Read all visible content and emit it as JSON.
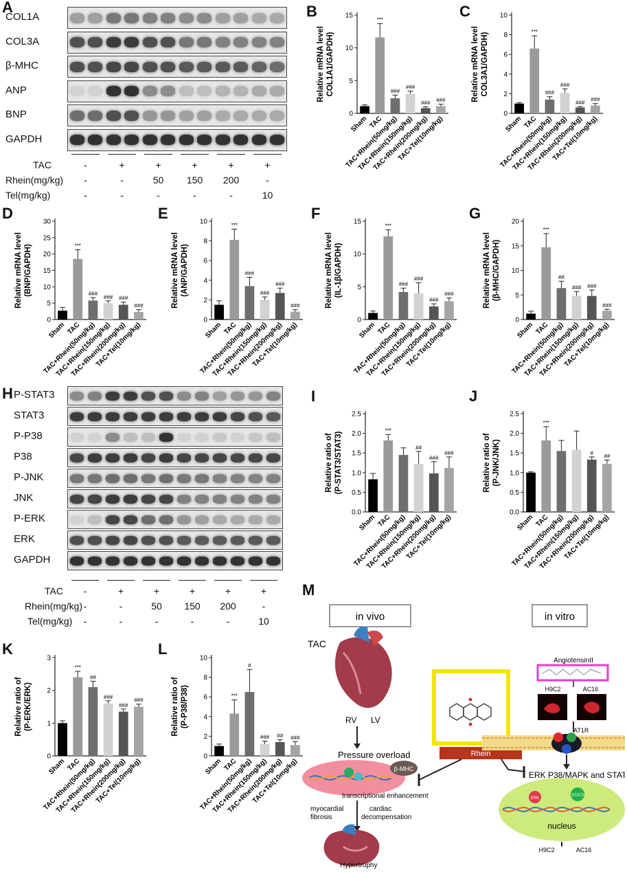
{
  "panels": {
    "A": "A",
    "B": "B",
    "C": "C",
    "D": "D",
    "E": "E",
    "F": "F",
    "G": "G",
    "H": "H",
    "I": "I",
    "J": "J",
    "K": "K",
    "L": "L",
    "M": "M"
  },
  "blot_A": {
    "rows": [
      "COL1A",
      "COL3A",
      "β-MHC",
      "ANP",
      "BNP",
      "GAPDH"
    ],
    "row_intensities": [
      [
        0.35,
        0.35,
        0.55,
        0.55,
        0.5,
        0.5,
        0.45,
        0.45,
        0.35,
        0.35,
        0.3,
        0.3
      ],
      [
        0.75,
        0.75,
        0.85,
        0.85,
        0.75,
        0.75,
        0.55,
        0.55,
        0.5,
        0.5,
        0.5,
        0.5
      ],
      [
        0.75,
        0.75,
        0.8,
        0.8,
        0.75,
        0.75,
        0.7,
        0.7,
        0.7,
        0.7,
        0.65,
        0.6
      ],
      [
        0.1,
        0.1,
        0.9,
        0.9,
        0.45,
        0.45,
        0.2,
        0.2,
        0.25,
        0.25,
        0.3,
        0.3
      ],
      [
        0.6,
        0.6,
        0.75,
        0.75,
        0.4,
        0.4,
        0.35,
        0.35,
        0.3,
        0.3,
        0.3,
        0.3
      ],
      [
        0.9,
        0.9,
        0.9,
        0.9,
        0.9,
        0.9,
        0.9,
        0.9,
        0.9,
        0.9,
        0.9,
        0.9
      ]
    ],
    "conditions": [
      {
        "label": "TAC",
        "values": [
          "-",
          "+",
          "+",
          "+",
          "+",
          "+"
        ]
      },
      {
        "label": "Rhein(mg/kg)",
        "values": [
          "-",
          "-",
          "50",
          "150",
          "200",
          "-"
        ]
      },
      {
        "label": "Tel(mg/kg)",
        "values": [
          "-",
          "-",
          "-",
          "-",
          "-",
          "10"
        ]
      }
    ]
  },
  "blot_H": {
    "rows": [
      "P-STAT3",
      "STAT3",
      "P-P38",
      "P38",
      "P-JNK",
      "JNK",
      "P-ERK",
      "ERK",
      "GAPDH"
    ],
    "row_intensities": [
      [
        0.45,
        0.5,
        0.85,
        0.85,
        0.75,
        0.75,
        0.45,
        0.5,
        0.35,
        0.4,
        0.4,
        0.5
      ],
      [
        0.85,
        0.85,
        0.85,
        0.85,
        0.85,
        0.85,
        0.85,
        0.85,
        0.85,
        0.8,
        0.75,
        0.7
      ],
      [
        0.1,
        0.1,
        0.45,
        0.2,
        0.2,
        0.9,
        0.1,
        0.1,
        0.15,
        0.1,
        0.15,
        0.2
      ],
      [
        0.8,
        0.85,
        0.85,
        0.85,
        0.8,
        0.85,
        0.8,
        0.8,
        0.8,
        0.8,
        0.8,
        0.8
      ],
      [
        0.55,
        0.55,
        0.6,
        0.6,
        0.55,
        0.6,
        0.55,
        0.55,
        0.5,
        0.5,
        0.5,
        0.5
      ],
      [
        0.8,
        0.8,
        0.85,
        0.85,
        0.8,
        0.8,
        0.5,
        0.5,
        0.5,
        0.5,
        0.5,
        0.5
      ],
      [
        0.1,
        0.2,
        0.8,
        0.8,
        0.6,
        0.6,
        0.4,
        0.35,
        0.3,
        0.3,
        0.3,
        0.3
      ],
      [
        0.75,
        0.75,
        0.8,
        0.8,
        0.75,
        0.75,
        0.7,
        0.7,
        0.7,
        0.7,
        0.7,
        0.7
      ],
      [
        0.9,
        0.9,
        0.9,
        0.9,
        0.9,
        0.9,
        0.9,
        0.9,
        0.9,
        0.9,
        0.9,
        0.9
      ]
    ],
    "conditions": [
      {
        "label": "TAC",
        "values": [
          "-",
          "+",
          "+",
          "+",
          "+",
          "+"
        ]
      },
      {
        "label": "Rhein(mg/kg)",
        "values": [
          "-",
          "-",
          "50",
          "150",
          "200",
          "-"
        ]
      },
      {
        "label": "Tel(mg/kg)",
        "values": [
          "-",
          "-",
          "-",
          "-",
          "-",
          "10"
        ]
      }
    ]
  },
  "chart_data": [
    {
      "id": "B",
      "type": "bar",
      "ylabel": "Relative mRNA level\nCOL1A1/GAPDH)",
      "categories": [
        "Sham",
        "TAC",
        "TAC+Rhein(50mg/kg)",
        "TAC+Rhein(150mg/kg)",
        "TAC+Rhein(200mg/kg)",
        "TAC+Tel(10mg/kg)"
      ],
      "values": [
        1.1,
        11.6,
        2.3,
        3.0,
        0.8,
        1.1
      ],
      "errors": [
        0.2,
        2.1,
        0.5,
        0.4,
        0.2,
        0.3
      ],
      "annotations": [
        "",
        "***",
        "###",
        "###",
        "###",
        "###"
      ],
      "ylim": [
        0,
        15
      ],
      "yticks": [
        0,
        5,
        10,
        15
      ]
    },
    {
      "id": "C",
      "type": "bar",
      "ylabel": "Relative mRNA level\nCOL3A1/GAPDH)",
      "categories": [
        "Sham",
        "TAC",
        "TAC+Rhein(50mg/kg)",
        "TAC+Rhein(150mg/kg)",
        "TAC+Rhein(200mg/kg)",
        "TAC+Tel(10mg/kg)"
      ],
      "values": [
        1.0,
        6.6,
        1.4,
        2.1,
        0.6,
        0.8
      ],
      "errors": [
        0.1,
        1.3,
        0.3,
        0.4,
        0.1,
        0.2
      ],
      "annotations": [
        "",
        "***",
        "###",
        "###",
        "###",
        "###"
      ],
      "ylim": [
        0,
        10
      ],
      "yticks": [
        0,
        2,
        4,
        6,
        8,
        10
      ]
    },
    {
      "id": "D",
      "type": "bar",
      "ylabel": "Relative mRNA level\n(BNP/GAPDH)",
      "categories": [
        "Sham",
        "TAC",
        "TAC+Rhein(50mg/kg)",
        "TAC+Rhein(150mg/kg)",
        "TAC+Rhein(200mg/kg)",
        "TAC+Tel(10mg/kg)"
      ],
      "values": [
        2.7,
        18.5,
        5.8,
        5.0,
        4.5,
        2.3
      ],
      "errors": [
        1.0,
        2.8,
        0.9,
        0.7,
        0.8,
        0.7
      ],
      "annotations": [
        "",
        "***",
        "###",
        "###",
        "###",
        "###"
      ],
      "ylim": [
        0,
        30
      ],
      "yticks": [
        0,
        5,
        10,
        15,
        20,
        25,
        30
      ]
    },
    {
      "id": "E",
      "type": "bar",
      "ylabel": "Relative mRNA level\n(ANP/GAPDH)",
      "categories": [
        "Sham",
        "TAC",
        "TAC+Rhein(50mg/kg)",
        "TAC+Rhein(150mg/kg)",
        "TAC+Rhein(200mg/kg)",
        "TAC+Tel(10mg/kg)"
      ],
      "values": [
        1.5,
        8.1,
        3.4,
        2.0,
        2.7,
        0.8
      ],
      "errors": [
        0.4,
        1.1,
        0.9,
        0.3,
        0.5,
        0.2
      ],
      "annotations": [
        "",
        "***",
        "###",
        "###",
        "###",
        "###"
      ],
      "ylim": [
        0,
        10
      ],
      "yticks": [
        0,
        2,
        4,
        6,
        8,
        10
      ]
    },
    {
      "id": "F",
      "type": "bar",
      "ylabel": "Relative mRNA level\n(IL-1β/GAPDH)",
      "categories": [
        "Sham",
        "TAC",
        "TAC+Rhein(50mg/kg)",
        "TAC+Rhein(150mg/kg)",
        "TAC+Rhein(200mg/kg)",
        "TAC+Tel(10mg/kg)"
      ],
      "values": [
        1.0,
        12.7,
        4.2,
        4.0,
        2.0,
        2.8
      ],
      "errors": [
        0.3,
        1.0,
        0.6,
        1.6,
        0.4,
        0.5
      ],
      "annotations": [
        "",
        "***",
        "###",
        "###",
        "###",
        "###"
      ],
      "ylim": [
        0,
        15
      ],
      "yticks": [
        0,
        5,
        10,
        15
      ]
    },
    {
      "id": "G",
      "type": "bar",
      "ylabel": "Relative mRNA level\n(β-MHC/GAPDH)",
      "categories": [
        "Sham",
        "TAC",
        "TAC+Rhein(50mg/kg)",
        "TAC+Rhein(150mg/kg)",
        "TAC+Rhein(200mg/kg)",
        "TAC+Tel(10mg/kg)"
      ],
      "values": [
        1.2,
        14.7,
        6.4,
        4.8,
        4.8,
        1.8
      ],
      "errors": [
        0.5,
        2.8,
        1.4,
        0.9,
        1.2,
        0.3
      ],
      "annotations": [
        "",
        "***",
        "##",
        "###",
        "###",
        "###"
      ],
      "ylim": [
        0,
        20
      ],
      "yticks": [
        0,
        5,
        10,
        15,
        20
      ]
    },
    {
      "id": "I",
      "type": "bar",
      "ylabel": "Relative ratio of\n(P-STAT3/STAT3)",
      "categories": [
        "Sham",
        "TAC",
        "TAC+Rhein(50mg/kg)",
        "TAC+Rhein(150mg/kg)",
        "TAC+Rhein(200mg/kg)",
        "TAC+Tel(10mg/kg)"
      ],
      "values": [
        0.83,
        1.82,
        1.45,
        1.22,
        0.98,
        1.12
      ],
      "errors": [
        0.15,
        0.15,
        0.18,
        0.32,
        0.3,
        0.28
      ],
      "annotations": [
        "",
        "***",
        "",
        "##",
        "###",
        "###"
      ],
      "ylim": [
        0,
        2.5
      ],
      "yticks": [
        0.0,
        0.5,
        1.0,
        1.5,
        2.0,
        2.5
      ],
      "ytick_labels": [
        "0.0",
        "0.5",
        "1.0",
        "1.5",
        "2.0",
        "2.5"
      ]
    },
    {
      "id": "J",
      "type": "bar",
      "ylabel": "Relative ratio of\n(P-JNK/JNK)",
      "categories": [
        "Sham",
        "TAC",
        "TAC+Rhein(50mg/kg)",
        "TAC+Rhein(150mg/kg)",
        "TAC+Rhein(200mg/kg)",
        "TAC+Tel(10mg/kg)"
      ],
      "values": [
        1.0,
        1.82,
        1.55,
        1.58,
        1.33,
        1.22
      ],
      "errors": [
        0.02,
        0.35,
        0.27,
        0.48,
        0.07,
        0.1
      ],
      "annotations": [
        "",
        "***",
        "",
        "",
        "#",
        "##"
      ],
      "ylim": [
        0,
        2.5
      ],
      "yticks": [
        0.0,
        0.5,
        1.0,
        1.5,
        2.0,
        2.5
      ],
      "ytick_labels": [
        "0.0",
        "0.5",
        "1.0",
        "1.5",
        "2.0",
        "2.5"
      ]
    },
    {
      "id": "K",
      "type": "bar",
      "ylabel": "Relative ratio of\n(P-ERK/ERK)",
      "categories": [
        "Sham",
        "TAC",
        "TAC+Rhein(50mg/kg)",
        "TAC+Rhein(150mg/kg)",
        "TAC+Rhein(200mg/kg)",
        "TAC+Tel(10mg/kg)"
      ],
      "values": [
        1.0,
        2.4,
        2.1,
        1.6,
        1.35,
        1.5
      ],
      "errors": [
        0.07,
        0.18,
        0.18,
        0.08,
        0.08,
        0.08
      ],
      "annotations": [
        "",
        "***",
        "##",
        "###",
        "###",
        "###"
      ],
      "ylim": [
        0,
        3
      ],
      "yticks": [
        0,
        1,
        2,
        3
      ]
    },
    {
      "id": "L",
      "type": "bar",
      "ylabel": "Relative ratio of\n(P-P38/P38)",
      "categories": [
        "Sham",
        "TAC",
        "TAC+Rhein(50mg/kg)",
        "TAC+Rhein(150mg/kg)",
        "TAC+Rhein(200mg/kg)",
        "TAC+Tel(10mg/kg)"
      ],
      "values": [
        1.0,
        4.3,
        6.5,
        1.2,
        1.4,
        1.1
      ],
      "errors": [
        0.2,
        1.4,
        2.3,
        0.3,
        0.25,
        0.35
      ],
      "annotations": [
        "",
        "***",
        "#",
        "###",
        "##",
        "###"
      ],
      "ylim": [
        0,
        10
      ],
      "yticks": [
        0,
        2,
        4,
        6,
        8,
        10
      ]
    }
  ],
  "bar_colors": [
    "#000000",
    "#9a9a9a",
    "#6e6e6e",
    "#d2d2d2",
    "#555555",
    "#a5a5a5"
  ],
  "scheme": {
    "in_vivo": "in vivo",
    "in_vitro": "in vitro",
    "tac": "TAC",
    "rv": "RV",
    "lv": "LV",
    "pressure_overload": "Pressure overload",
    "beta_mhc": "β-MHC",
    "transcriptional": "transcriptional enhancement",
    "myocardial_fibrosis": "myocardial\nfibrosis",
    "cardiac_decomp": "cardiac\ndecompensation",
    "hypertrophy": "Hypertrophy",
    "rhein": "Rhein",
    "angiotensin": "AngiotensinII",
    "h9c2": "H9C2",
    "ac16": "AC16",
    "at1r": "AT1R",
    "pathway": "ERK P38/MAPK and STAT3",
    "nucleus": "nucleus",
    "erk": "ERK",
    "stat3": "STAT3",
    "gata4": "GATA4",
    "nfat": "NFAT"
  }
}
